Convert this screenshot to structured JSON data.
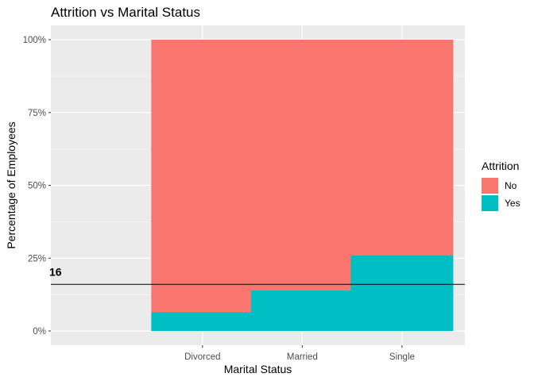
{
  "chart_data": {
    "type": "bar",
    "stacked": true,
    "title": "Attrition vs Marital Status",
    "xlabel": "Marital Status",
    "ylabel": "Percentage of Employees",
    "categories": [
      "Divorced",
      "Married",
      "Single"
    ],
    "series": [
      {
        "name": "No",
        "values": [
          93.6,
          86.0,
          74.0
        ],
        "color": "#F8766D"
      },
      {
        "name": "Yes",
        "values": [
          6.4,
          14.0,
          26.0
        ],
        "color": "#00BFC4"
      }
    ],
    "ylim": [
      0,
      100
    ],
    "yticks": [
      "0%",
      "25%",
      "50%",
      "75%",
      "100%"
    ],
    "ytick_values": [
      0,
      25,
      50,
      75,
      100
    ],
    "legend": {
      "title": "Attrition",
      "placement": "right"
    },
    "reference_line": {
      "y": 16,
      "label": "16"
    },
    "grid": true,
    "panel_background": "#EBEBEB"
  }
}
